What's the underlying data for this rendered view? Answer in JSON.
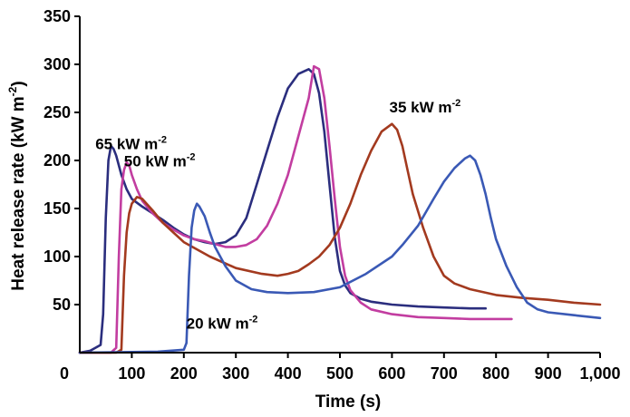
{
  "chart_data": {
    "type": "line",
    "title": "",
    "xlabel": "Time (s)",
    "ylabel": "Heat release rate (kW m-2)",
    "ylabel_main": "Heat release rate (kW m",
    "ylabel_sup": "-2",
    "ylabel_close": ")",
    "xlim": [
      0,
      1000
    ],
    "ylim": [
      0,
      350
    ],
    "x_ticks": [
      {
        "value": 0,
        "label": "0"
      },
      {
        "value": 100,
        "label": "100"
      },
      {
        "value": 200,
        "label": "200"
      },
      {
        "value": 300,
        "label": "300"
      },
      {
        "value": 400,
        "label": "400"
      },
      {
        "value": 500,
        "label": "500"
      },
      {
        "value": 600,
        "label": "600"
      },
      {
        "value": 700,
        "label": "700"
      },
      {
        "value": 800,
        "label": "800"
      },
      {
        "value": 900,
        "label": "900"
      },
      {
        "value": 1000,
        "label": "1,000"
      }
    ],
    "y_ticks": [
      {
        "value": 50,
        "label": "50"
      },
      {
        "value": 100,
        "label": "100"
      },
      {
        "value": 150,
        "label": "150"
      },
      {
        "value": 200,
        "label": "200"
      },
      {
        "value": 250,
        "label": "250"
      },
      {
        "value": 300,
        "label": "300"
      },
      {
        "value": 350,
        "label": "350"
      }
    ],
    "grid": false,
    "legend": "none",
    "series": [
      {
        "label_main": "65 kW m",
        "label_sup": "-2",
        "label_at": [
          30,
          212
        ],
        "color": "#2b2e7e",
        "x": [
          0,
          20,
          30,
          40,
          45,
          50,
          55,
          60,
          65,
          70,
          80,
          90,
          100,
          120,
          140,
          160,
          180,
          200,
          220,
          240,
          260,
          280,
          300,
          320,
          340,
          360,
          380,
          400,
          420,
          440,
          450,
          460,
          470,
          480,
          490,
          500,
          510,
          520,
          540,
          560,
          600,
          650,
          700,
          750,
          780
        ],
        "y": [
          0,
          2,
          5,
          8,
          40,
          140,
          200,
          215,
          212,
          205,
          185,
          170,
          160,
          152,
          145,
          138,
          130,
          123,
          118,
          115,
          113,
          115,
          122,
          140,
          175,
          210,
          245,
          275,
          290,
          295,
          290,
          270,
          230,
          175,
          120,
          85,
          70,
          62,
          56,
          53,
          50,
          48,
          47,
          46,
          46
        ]
      },
      {
        "label_main": "50 kW m",
        "label_sup": "-2",
        "label_at": [
          85,
          194
        ],
        "color": "#c23da0",
        "x": [
          0,
          60,
          70,
          75,
          80,
          85,
          90,
          95,
          100,
          110,
          120,
          140,
          160,
          180,
          200,
          220,
          240,
          260,
          280,
          300,
          320,
          340,
          360,
          380,
          400,
          420,
          440,
          450,
          460,
          470,
          480,
          490,
          500,
          510,
          520,
          540,
          560,
          600,
          650,
          700,
          750,
          800,
          830
        ],
        "y": [
          0,
          0,
          5,
          100,
          170,
          190,
          198,
          195,
          185,
          170,
          158,
          145,
          135,
          128,
          122,
          118,
          116,
          113,
          110,
          110,
          112,
          118,
          132,
          155,
          185,
          225,
          265,
          298,
          295,
          265,
          215,
          160,
          110,
          80,
          65,
          52,
          45,
          40,
          37,
          36,
          35,
          35,
          35
        ]
      },
      {
        "label_main": "35 kW m",
        "label_sup": "-2",
        "label_at": [
          595,
          250
        ],
        "color": "#a33a1f",
        "x": [
          0,
          70,
          80,
          85,
          90,
          95,
          100,
          110,
          120,
          140,
          160,
          180,
          200,
          250,
          300,
          350,
          380,
          400,
          420,
          440,
          460,
          480,
          500,
          520,
          540,
          560,
          580,
          600,
          610,
          620,
          630,
          640,
          660,
          680,
          700,
          720,
          750,
          800,
          850,
          900,
          950,
          1000
        ],
        "y": [
          0,
          0,
          3,
          80,
          125,
          145,
          155,
          162,
          160,
          148,
          135,
          125,
          115,
          100,
          88,
          82,
          80,
          82,
          85,
          92,
          100,
          112,
          130,
          155,
          185,
          210,
          230,
          238,
          232,
          215,
          190,
          165,
          130,
          100,
          80,
          72,
          66,
          60,
          57,
          55,
          52,
          50
        ]
      },
      {
        "label_main": "20 kW m",
        "label_sup": "-2",
        "label_at": [
          205,
          25
        ],
        "color": "#3a59b5",
        "x": [
          0,
          150,
          200,
          205,
          210,
          215,
          220,
          225,
          230,
          240,
          250,
          260,
          280,
          300,
          330,
          360,
          400,
          450,
          500,
          550,
          600,
          620,
          650,
          680,
          700,
          720,
          740,
          750,
          760,
          770,
          780,
          790,
          800,
          820,
          840,
          860,
          880,
          900,
          950,
          1000
        ],
        "y": [
          0,
          1,
          3,
          10,
          80,
          130,
          148,
          155,
          152,
          142,
          125,
          110,
          90,
          75,
          66,
          63,
          62,
          63,
          68,
          82,
          100,
          112,
          132,
          160,
          178,
          192,
          202,
          205,
          200,
          185,
          165,
          140,
          118,
          90,
          68,
          52,
          45,
          42,
          39,
          36
        ]
      }
    ]
  }
}
